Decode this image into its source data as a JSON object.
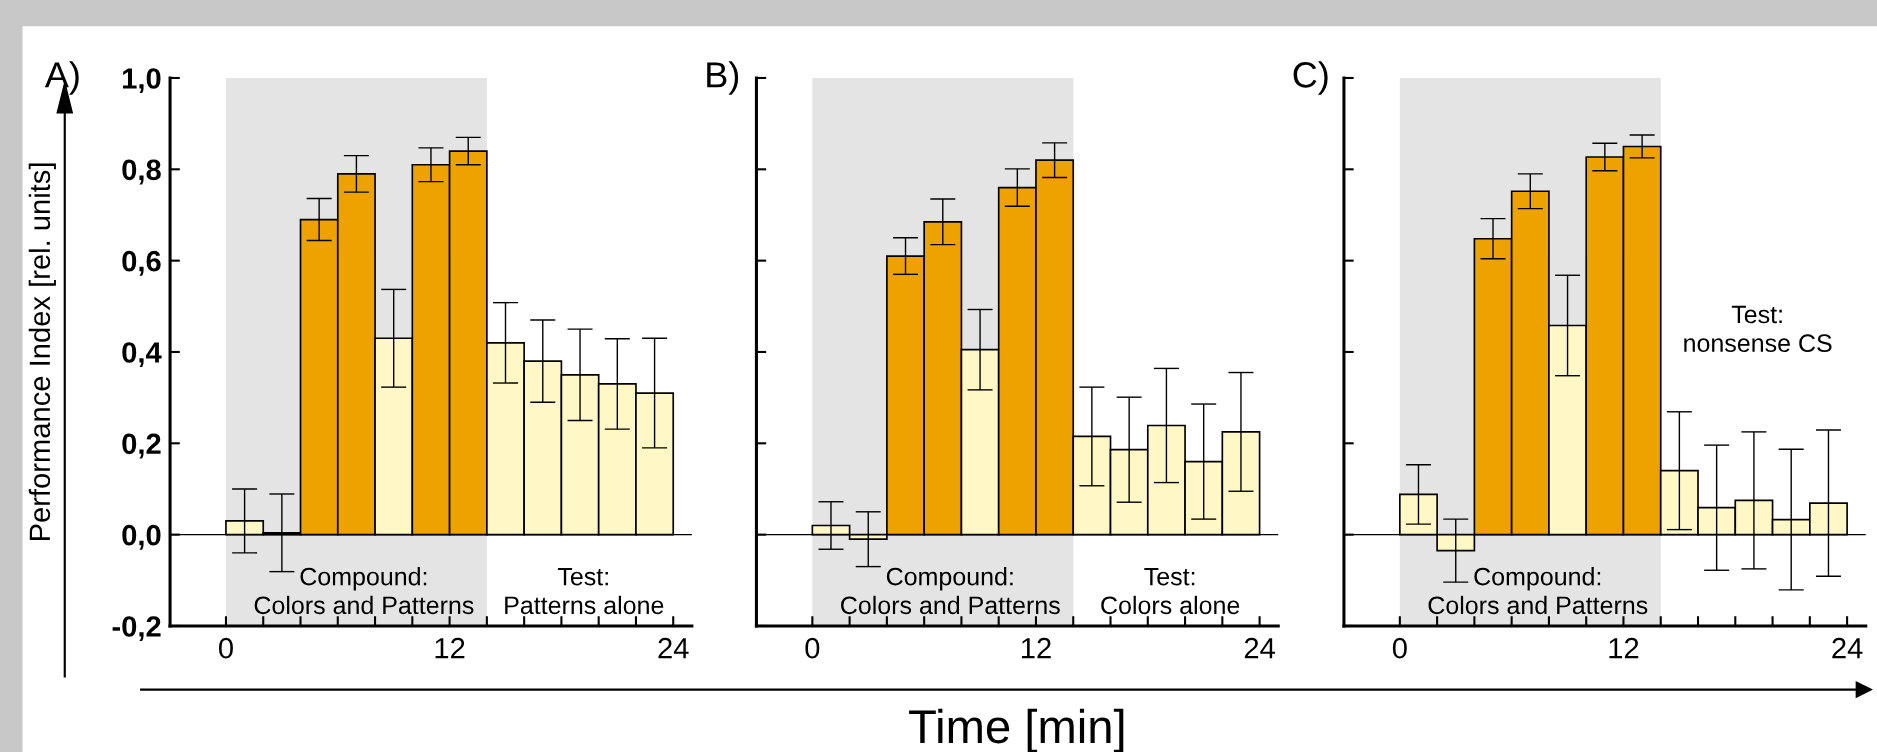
{
  "chart_data": [
    {
      "type": "bar",
      "title": "A)",
      "ylabel": "Performance Index [rel. units]",
      "x": [
        1,
        3,
        5,
        7,
        9,
        11,
        13,
        15,
        17,
        19,
        21,
        23
      ],
      "values": [
        0.03,
        0.004,
        0.69,
        0.79,
        0.43,
        0.81,
        0.84,
        0.42,
        0.38,
        0.35,
        0.33,
        0.31
      ],
      "errors": [
        0.07,
        0.085,
        0.046,
        0.04,
        0.107,
        0.037,
        0.03,
        0.088,
        0.09,
        0.1,
        0.099,
        0.12
      ],
      "colors": [
        "#fff8c6",
        "#fff8c6",
        "#eea200",
        "#eea200",
        "#fff8c6",
        "#eea200",
        "#eea200",
        "#fff8c6",
        "#fff8c6",
        "#fff8c6",
        "#fff8c6",
        "#fff8c6"
      ],
      "xlim": [
        -3,
        25
      ],
      "ylim": [
        -0.2,
        1.0
      ],
      "xticks": [
        0,
        {
          "value": 2,
          "label": null
        },
        {
          "value": 4,
          "label": null
        },
        {
          "value": 6,
          "label": null
        },
        {
          "value": 8,
          "label": null
        },
        {
          "value": 10,
          "label": null
        },
        12,
        {
          "value": 14,
          "label": null
        },
        {
          "value": 16,
          "label": null
        },
        {
          "value": 18,
          "label": null
        },
        {
          "value": 20,
          "label": null
        },
        {
          "value": 22,
          "label": null
        },
        24
      ],
      "yticks": [
        {
          "value": -0.2,
          "label": "-0,2"
        },
        {
          "value": 0.0,
          "label": "0,0"
        },
        {
          "value": 0.2,
          "label": "0,2"
        },
        {
          "value": 0.4,
          "label": "0,4"
        },
        {
          "value": 0.6,
          "label": "0,6"
        },
        {
          "value": 0.8,
          "label": "0,8"
        },
        {
          "value": 1.0,
          "label": "1,0"
        }
      ],
      "ref_lines": [
        {
          "axis": "y",
          "value": 0
        }
      ],
      "bands": [
        {
          "axis": "x",
          "from": 0,
          "to": 14,
          "label": "Compound:\nColors and Patterns",
          "color": "#e4e4e4"
        }
      ],
      "annotations": [
        "Test:\nPatterns alone"
      ],
      "grid": false
    },
    {
      "type": "bar",
      "title": "B)",
      "xlabel": "Time [min]",
      "x": [
        1,
        3,
        5,
        7,
        9,
        11,
        13,
        15,
        17,
        19,
        21,
        23
      ],
      "values": [
        0.02,
        -0.01,
        0.61,
        0.685,
        0.405,
        0.76,
        0.82,
        0.215,
        0.186,
        0.239,
        0.16,
        0.225
      ],
      "errors": [
        0.052,
        0.06,
        0.04,
        0.05,
        0.088,
        0.041,
        0.038,
        0.108,
        0.115,
        0.125,
        0.126,
        0.13
      ],
      "colors": [
        "#fff8c6",
        "#fff8c6",
        "#eea200",
        "#eea200",
        "#fff8c6",
        "#eea200",
        "#eea200",
        "#fff8c6",
        "#fff8c6",
        "#fff8c6",
        "#fff8c6",
        "#fff8c6"
      ],
      "xlim": [
        -3,
        25
      ],
      "ylim": [
        -0.2,
        1.0
      ],
      "xticks": [
        0,
        {
          "value": 2,
          "label": null
        },
        {
          "value": 4,
          "label": null
        },
        {
          "value": 6,
          "label": null
        },
        {
          "value": 8,
          "label": null
        },
        {
          "value": 10,
          "label": null
        },
        12,
        {
          "value": 14,
          "label": null
        },
        {
          "value": 16,
          "label": null
        },
        {
          "value": 18,
          "label": null
        },
        {
          "value": 20,
          "label": null
        },
        {
          "value": 22,
          "label": null
        },
        24
      ],
      "yticks": [
        {
          "value": -0.2,
          "label": null
        },
        {
          "value": 0.0,
          "label": null
        },
        {
          "value": 0.2,
          "label": null
        },
        {
          "value": 0.4,
          "label": null
        },
        {
          "value": 0.6,
          "label": null
        },
        {
          "value": 0.8,
          "label": null
        },
        {
          "value": 1.0,
          "label": null
        }
      ],
      "tick_labels": "x",
      "ref_lines": [
        {
          "axis": "y",
          "value": 0
        }
      ],
      "bands": [
        {
          "axis": "x",
          "from": 0,
          "to": 14,
          "label": "Compound:\nColors and Patterns",
          "color": "#e4e4e4"
        }
      ],
      "annotations": [
        "Test:\nColors alone"
      ],
      "grid": false
    },
    {
      "type": "bar",
      "title": "C)",
      "x": [
        1,
        3,
        5,
        7,
        9,
        11,
        13,
        15,
        17,
        19,
        21,
        23
      ],
      "values": [
        0.088,
        -0.035,
        0.648,
        0.752,
        0.458,
        0.827,
        0.85,
        0.14,
        0.059,
        0.075,
        0.033,
        0.069
      ],
      "errors": [
        0.065,
        0.069,
        0.044,
        0.038,
        0.11,
        0.03,
        0.025,
        0.129,
        0.137,
        0.15,
        0.154,
        0.16
      ],
      "colors": [
        "#fff8c6",
        "#fff8c6",
        "#eea200",
        "#eea200",
        "#fff8c6",
        "#eea200",
        "#eea200",
        "#fff8c6",
        "#fff8c6",
        "#fff8c6",
        "#fff8c6",
        "#fff8c6"
      ],
      "xlim": [
        -3,
        25
      ],
      "ylim": [
        -0.2,
        1.0
      ],
      "xticks": [
        0,
        {
          "value": 2,
          "label": null
        },
        {
          "value": 4,
          "label": null
        },
        {
          "value": 6,
          "label": null
        },
        {
          "value": 8,
          "label": null
        },
        {
          "value": 10,
          "label": null
        },
        12,
        {
          "value": 14,
          "label": null
        },
        {
          "value": 16,
          "label": null
        },
        {
          "value": 18,
          "label": null
        },
        {
          "value": 20,
          "label": null
        },
        {
          "value": 22,
          "label": null
        },
        24
      ],
      "yticks": [
        {
          "value": -0.2,
          "label": null
        },
        {
          "value": 0.0,
          "label": null
        },
        {
          "value": 0.2,
          "label": null
        },
        {
          "value": 0.4,
          "label": null
        },
        {
          "value": 0.6,
          "label": null
        },
        {
          "value": 0.8,
          "label": null
        },
        {
          "value": 1.0,
          "label": null
        }
      ],
      "tick_labels": "x",
      "ref_lines": [
        {
          "axis": "y",
          "value": 0
        }
      ],
      "bands": [
        {
          "axis": "x",
          "from": 0,
          "to": 14,
          "label": "Compound:\nColors and Patterns",
          "color": "#e4e4e4"
        }
      ],
      "annotations": [
        "Test:\nnonsense CS"
      ],
      "grid": false
    }
  ]
}
